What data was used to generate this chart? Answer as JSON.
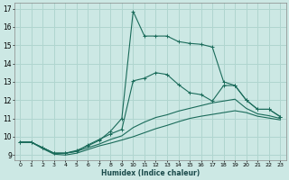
{
  "xlabel": "Humidex (Indice chaleur)",
  "bg_color": "#cce8e4",
  "grid_color": "#b0d5cf",
  "line_color": "#1a6b5a",
  "xlim": [
    -0.5,
    23.5
  ],
  "ylim": [
    8.7,
    17.3
  ],
  "xticks": [
    0,
    1,
    2,
    3,
    4,
    5,
    6,
    7,
    8,
    9,
    10,
    11,
    12,
    13,
    14,
    15,
    16,
    17,
    18,
    19,
    20,
    21,
    22,
    23
  ],
  "yticks": [
    9,
    10,
    11,
    12,
    13,
    14,
    15,
    16,
    17
  ],
  "series": [
    {
      "x": [
        0,
        1,
        2,
        3,
        4,
        5,
        6,
        7,
        8,
        9,
        10,
        11,
        12,
        13,
        14,
        15,
        16,
        17,
        18,
        19,
        20,
        21,
        22,
        23
      ],
      "y": [
        9.7,
        9.7,
        9.4,
        9.1,
        9.1,
        9.25,
        9.5,
        9.8,
        10.3,
        11.0,
        16.85,
        15.5,
        15.5,
        15.5,
        15.2,
        15.1,
        15.05,
        14.9,
        13.0,
        12.8,
        12.0,
        11.5,
        11.5,
        11.1
      ],
      "marker": true
    },
    {
      "x": [
        0,
        1,
        2,
        3,
        4,
        5,
        6,
        7,
        8,
        9,
        10,
        11,
        12,
        13,
        14,
        15,
        16,
        17,
        18,
        19,
        20,
        21,
        22,
        23
      ],
      "y": [
        9.7,
        9.7,
        9.4,
        9.1,
        9.1,
        9.2,
        9.55,
        9.85,
        10.15,
        10.4,
        13.05,
        13.2,
        13.5,
        13.4,
        12.85,
        12.4,
        12.3,
        11.95,
        12.8,
        12.8,
        12.0,
        11.5,
        11.5,
        11.1
      ],
      "marker": true
    },
    {
      "x": [
        0,
        1,
        2,
        3,
        4,
        5,
        6,
        7,
        8,
        9,
        10,
        11,
        12,
        13,
        14,
        15,
        16,
        17,
        18,
        19,
        20,
        21,
        22,
        23
      ],
      "y": [
        9.7,
        9.7,
        9.4,
        9.1,
        9.1,
        9.2,
        9.4,
        9.6,
        9.85,
        10.05,
        10.5,
        10.8,
        11.05,
        11.2,
        11.4,
        11.55,
        11.7,
        11.85,
        11.95,
        12.05,
        11.55,
        11.25,
        11.15,
        11.0
      ],
      "marker": false
    },
    {
      "x": [
        0,
        1,
        2,
        3,
        4,
        5,
        6,
        7,
        8,
        9,
        10,
        11,
        12,
        13,
        14,
        15,
        16,
        17,
        18,
        19,
        20,
        21,
        22,
        23
      ],
      "y": [
        9.7,
        9.7,
        9.35,
        9.05,
        9.0,
        9.1,
        9.3,
        9.5,
        9.65,
        9.82,
        10.0,
        10.22,
        10.44,
        10.62,
        10.82,
        11.0,
        11.12,
        11.22,
        11.32,
        11.42,
        11.32,
        11.12,
        11.02,
        10.92
      ],
      "marker": false
    }
  ]
}
